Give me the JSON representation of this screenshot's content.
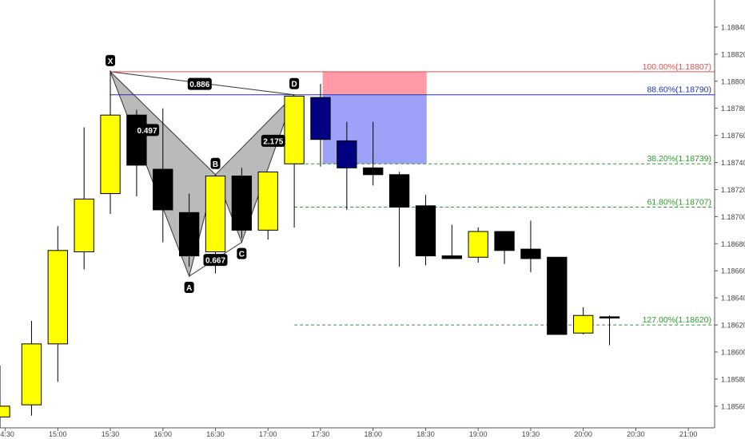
{
  "chart_data": {
    "type": "candlestick",
    "title": "",
    "price_axis": {
      "ylim": [
        1.18544,
        1.1886
      ],
      "ticks": [
        "1.18840",
        "1.18820",
        "1.18800",
        "1.18780",
        "1.18760",
        "1.18740",
        "1.18720",
        "1.18700",
        "1.18680",
        "1.18660",
        "1.18640",
        "1.18620",
        "1.18600",
        "1.18580",
        "1.18560"
      ]
    },
    "time_axis": {
      "xlim": [
        14.45,
        21.25
      ],
      "ticks": [
        {
          "label": "14:30",
          "t": 14.5
        },
        {
          "label": "15:00",
          "t": 15.0
        },
        {
          "label": "15:30",
          "t": 15.5
        },
        {
          "label": "16:00",
          "t": 16.0
        },
        {
          "label": "16:30",
          "t": 16.5
        },
        {
          "label": "17:00",
          "t": 17.0
        },
        {
          "label": "17:30",
          "t": 17.5
        },
        {
          "label": "18:00",
          "t": 18.0
        },
        {
          "label": "18:30",
          "t": 18.5
        },
        {
          "label": "19:00",
          "t": 19.0
        },
        {
          "label": "19:30",
          "t": 19.5
        },
        {
          "label": "20:00",
          "t": 20.0
        },
        {
          "label": "20:30",
          "t": 20.5
        },
        {
          "label": "21:00",
          "t": 21.0
        }
      ]
    },
    "colors": {
      "bull": "#ffff00",
      "bear": "#000000",
      "bear_highlight": "#000080",
      "pattern_fill": "#b3b3b3",
      "sl_zone": "#ff9aa6",
      "entry_zone": "#9da1f7",
      "line_100": "#e05050",
      "line_886": "#2030b0",
      "fib_lines": "#2d9a2d"
    },
    "candles": [
      {
        "t": 14.45,
        "o": 1.18552,
        "h": 1.1859,
        "l": 1.18544,
        "c": 1.1856,
        "dir": "bull"
      },
      {
        "t": 14.75,
        "o": 1.18561,
        "h": 1.18623,
        "l": 1.18553,
        "c": 1.18606,
        "dir": "bull"
      },
      {
        "t": 15.0,
        "o": 1.18606,
        "h": 1.18693,
        "l": 1.18578,
        "c": 1.18675,
        "dir": "bull"
      },
      {
        "t": 15.25,
        "o": 1.18674,
        "h": 1.18766,
        "l": 1.18661,
        "c": 1.18713,
        "dir": "bull"
      },
      {
        "t": 15.5,
        "o": 1.18717,
        "h": 1.18808,
        "l": 1.18702,
        "c": 1.18775,
        "dir": "bull"
      },
      {
        "t": 15.75,
        "o": 1.18775,
        "h": 1.18779,
        "l": 1.18715,
        "c": 1.18738,
        "dir": "bear"
      },
      {
        "t": 16.0,
        "o": 1.18735,
        "h": 1.1878,
        "l": 1.18681,
        "c": 1.18705,
        "dir": "bear"
      },
      {
        "t": 16.25,
        "o": 1.18703,
        "h": 1.18717,
        "l": 1.18663,
        "c": 1.18671,
        "dir": "bear"
      },
      {
        "t": 16.5,
        "o": 1.18674,
        "h": 1.18731,
        "l": 1.18658,
        "c": 1.1873,
        "dir": "bull"
      },
      {
        "t": 16.75,
        "o": 1.1873,
        "h": 1.18736,
        "l": 1.18684,
        "c": 1.1869,
        "dir": "bear"
      },
      {
        "t": 17.0,
        "o": 1.1869,
        "h": 1.18733,
        "l": 1.18683,
        "c": 1.18733,
        "dir": "bull"
      },
      {
        "t": 17.25,
        "o": 1.18739,
        "h": 1.18789,
        "l": 1.18692,
        "c": 1.18789,
        "dir": "bull"
      },
      {
        "t": 17.5,
        "o": 1.18788,
        "h": 1.18798,
        "l": 1.18737,
        "c": 1.18757,
        "dir": "bear",
        "highlight": true
      },
      {
        "t": 17.75,
        "o": 1.18756,
        "h": 1.1877,
        "l": 1.18705,
        "c": 1.18736,
        "dir": "bear",
        "highlight": true
      },
      {
        "t": 18.0,
        "o": 1.18736,
        "h": 1.1877,
        "l": 1.18723,
        "c": 1.18731,
        "dir": "bear"
      },
      {
        "t": 18.25,
        "o": 1.18731,
        "h": 1.18733,
        "l": 1.18663,
        "c": 1.18707,
        "dir": "bear"
      },
      {
        "t": 18.5,
        "o": 1.18708,
        "h": 1.18716,
        "l": 1.18664,
        "c": 1.18671,
        "dir": "bear"
      },
      {
        "t": 18.75,
        "o": 1.18671,
        "h": 1.18694,
        "l": 1.18669,
        "c": 1.18669,
        "dir": "bear"
      },
      {
        "t": 19.0,
        "o": 1.1867,
        "h": 1.18692,
        "l": 1.18666,
        "c": 1.18689,
        "dir": "bull"
      },
      {
        "t": 19.25,
        "o": 1.18689,
        "h": 1.18689,
        "l": 1.18665,
        "c": 1.18675,
        "dir": "bear"
      },
      {
        "t": 19.5,
        "o": 1.18676,
        "h": 1.18697,
        "l": 1.18659,
        "c": 1.18669,
        "dir": "bear"
      },
      {
        "t": 19.75,
        "o": 1.1867,
        "h": 1.1867,
        "l": 1.18613,
        "c": 1.18613,
        "dir": "bear"
      },
      {
        "t": 20.0,
        "o": 1.18614,
        "h": 1.18633,
        "l": 1.18613,
        "c": 1.18627,
        "dir": "bull"
      },
      {
        "t": 20.25,
        "o": 1.18626,
        "h": 1.18627,
        "l": 1.18605,
        "c": 1.18626,
        "dir": "bear"
      }
    ],
    "harmonic_pattern": {
      "type": "bat",
      "points": [
        {
          "label": "X",
          "t": 15.5,
          "p": 1.18807
        },
        {
          "label": "A",
          "t": 16.25,
          "p": 1.18656
        },
        {
          "label": "B",
          "t": 16.5,
          "p": 1.18731
        },
        {
          "label": "C",
          "t": 16.75,
          "p": 1.18681
        },
        {
          "label": "D",
          "t": 17.25,
          "p": 1.1879
        }
      ],
      "ratios": [
        {
          "text": "0.886",
          "t": 16.35,
          "p": 1.18798
        },
        {
          "text": "0.497",
          "t": 15.85,
          "p": 1.18764
        },
        {
          "text": "0.667",
          "t": 16.5,
          "p": 1.18668
        },
        {
          "text": "2.175",
          "t": 17.05,
          "p": 1.18756
        }
      ]
    },
    "zones": [
      {
        "name": "stop",
        "t0": 17.52,
        "t1": 18.51,
        "p_top": 1.18807,
        "p_bottom": 1.1879
      },
      {
        "name": "entry",
        "t0": 17.52,
        "t1": 18.51,
        "p_top": 1.1879,
        "p_bottom": 1.18739
      }
    ],
    "levels": [
      {
        "label": "100.00%(1.18807)",
        "p": 1.18807,
        "t0": 15.5,
        "style": "solid",
        "color_key": "line_100"
      },
      {
        "label": "88.60%(1.18790)",
        "p": 1.1879,
        "t0": 15.5,
        "style": "solid",
        "color_key": "line_886"
      },
      {
        "label": "38.20%(1.18739)",
        "p": 1.18739,
        "t0": 17.25,
        "style": "dashed",
        "color_key": "fib_lines"
      },
      {
        "label": "61.80%(1.18707)",
        "p": 1.18707,
        "t0": 17.25,
        "style": "dashed",
        "color_key": "fib_lines"
      },
      {
        "label": "127.00%(1.18620)",
        "p": 1.1862,
        "t0": 17.25,
        "style": "dashed",
        "color_key": "fib_lines"
      }
    ]
  }
}
